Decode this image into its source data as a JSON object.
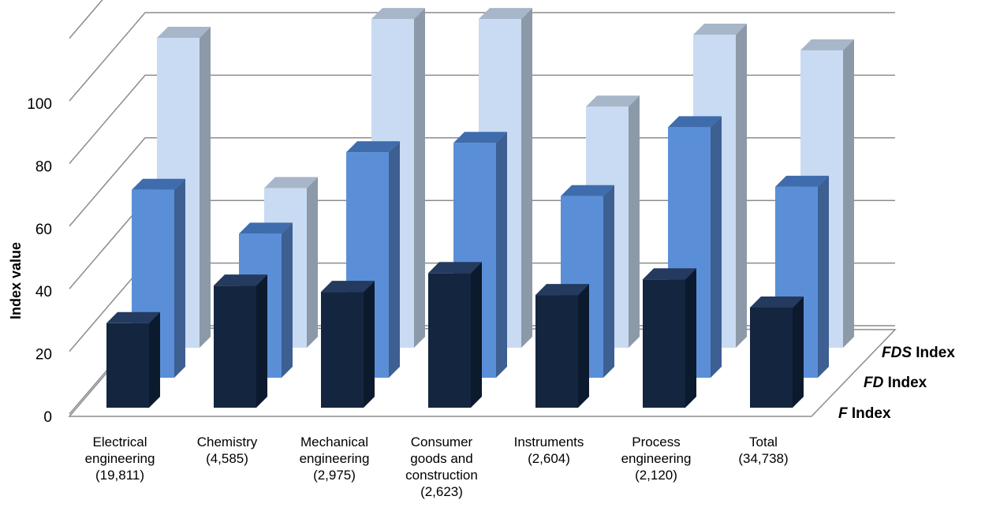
{
  "chart_data": {
    "type": "bar",
    "variant": "3d-column",
    "ylabel": "Index value",
    "ylim": [
      0,
      120
    ],
    "yticks": [
      "0",
      "20",
      "40",
      "60",
      "80",
      "100"
    ],
    "grid": true,
    "categories": [
      [
        "Electrical",
        "engineering",
        "(19,811)"
      ],
      [
        "Chemistry",
        "(4,585)"
      ],
      [
        "Mechanical",
        "engineering",
        "(2,975)"
      ],
      [
        "Consumer",
        "goods and",
        "construction",
        "(2,623)"
      ],
      [
        "Instruments",
        "(2,604)"
      ],
      [
        "Process",
        "engineering",
        "(2,120)"
      ],
      [
        "Total",
        "(34,738)"
      ]
    ],
    "series": [
      {
        "name_italic": "F",
        "name_rest": " Index",
        "values": [
          27,
          39,
          37,
          43,
          36,
          41,
          32
        ]
      },
      {
        "name_italic": "FD",
        "name_rest": " Index",
        "values": [
          60,
          46,
          72,
          75,
          58,
          80,
          61
        ]
      },
      {
        "name_italic": "FDS",
        "name_rest": "  Index",
        "values": [
          99,
          51,
          105,
          105,
          77,
          100,
          95
        ]
      }
    ],
    "colors": {
      "F": {
        "front": "#14253f",
        "side": "#0c1a2e",
        "top": "#243a5e"
      },
      "FD": {
        "front": "#5a8fd8",
        "side": "#3d5f92",
        "top": "#3f6cac"
      },
      "FDS": {
        "front": "#c9dbf2",
        "side": "#8c99a8",
        "top": "#a7b6c8"
      },
      "grid": "#8c8c8c"
    }
  }
}
